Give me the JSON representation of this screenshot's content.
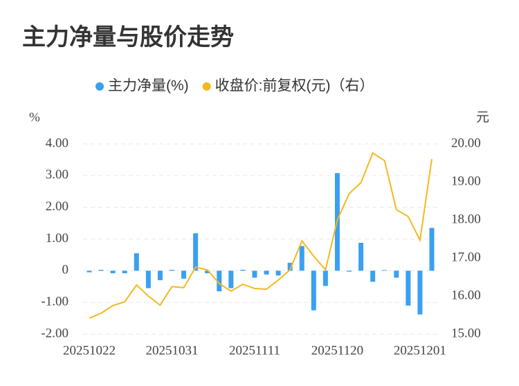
{
  "chart_data": {
    "type": "bar_line",
    "title": "主力净量与股价走势",
    "x": [
      "20251022",
      "20251023",
      "20251024",
      "20251027",
      "20251028",
      "20251029",
      "20251030",
      "20251031",
      "20251103",
      "20251104",
      "20251105",
      "20251106",
      "20251107",
      "20251110",
      "20251111",
      "20251112",
      "20251113",
      "20251114",
      "20251117",
      "20251118",
      "20251119",
      "20251120",
      "20251121",
      "20251124",
      "20251125",
      "20251126",
      "20251127",
      "20251128",
      "20251201",
      "20251202"
    ],
    "xticks": [
      {
        "value": 0,
        "label": "20251022"
      },
      {
        "value": 7,
        "label": "20251031"
      },
      {
        "value": 14,
        "label": "20251111"
      },
      {
        "value": 21,
        "label": "20251120"
      },
      {
        "value": 28,
        "label": "20251201"
      }
    ],
    "y_label": "%",
    "y2_label": "元",
    "series": [
      {
        "name": "主力净量(%)",
        "color": "#3aa0f0",
        "type": "bar",
        "values": [
          -0.05,
          0.03,
          -0.08,
          -0.08,
          0.55,
          -0.55,
          -0.3,
          0.03,
          -0.25,
          1.18,
          -0.08,
          -0.65,
          -0.55,
          0.03,
          -0.22,
          -0.12,
          -0.15,
          0.25,
          0.78,
          -1.25,
          -0.48,
          3.08,
          -0.03,
          0.88,
          -0.35,
          0.02,
          -0.22,
          -1.1,
          -1.38,
          1.35
        ]
      },
      {
        "name": "收盘价:前复权(元)（右）",
        "color": "#f5b81c",
        "type": "line",
        "axis": "y2",
        "values": [
          15.42,
          15.55,
          15.75,
          15.85,
          16.29,
          16.0,
          15.76,
          16.25,
          16.22,
          16.76,
          16.69,
          16.33,
          16.13,
          16.31,
          16.2,
          16.18,
          16.42,
          16.69,
          17.45,
          17.05,
          16.69,
          18.0,
          18.69,
          18.98,
          19.76,
          19.56,
          18.27,
          18.09,
          17.47,
          19.6
        ]
      }
    ],
    "ylim": [
      -2,
      4
    ],
    "yticks": [
      {
        "value": 4,
        "label": "4.00"
      },
      {
        "value": 3,
        "label": "3.00"
      },
      {
        "value": 2,
        "label": "2.00"
      },
      {
        "value": 1,
        "label": "1.00"
      },
      0,
      {
        "value": -1,
        "label": "-1.00"
      },
      {
        "value": -2,
        "label": "-2.00"
      }
    ],
    "y2lim": [
      15,
      20
    ],
    "y2ticks": [
      {
        "value": 20,
        "label": "20.00"
      },
      {
        "value": 19,
        "label": "19.00"
      },
      {
        "value": 18,
        "label": "18.00"
      },
      {
        "value": 17,
        "label": "17.00"
      },
      {
        "value": 16,
        "label": "16.00"
      },
      {
        "value": 15,
        "label": "15.00"
      }
    ],
    "grid": true
  }
}
